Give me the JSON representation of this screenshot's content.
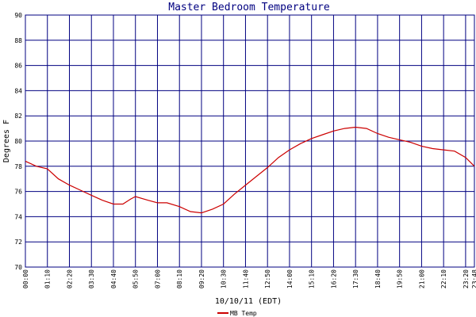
{
  "chart_data": {
    "type": "line",
    "title": "Master Bedroom Temperature",
    "xlabel": "10/10/11 (EDT)",
    "ylabel": "Degrees F",
    "ylim": [
      70,
      90
    ],
    "yticks": [
      70,
      72,
      74,
      76,
      78,
      80,
      82,
      84,
      86,
      88,
      90
    ],
    "xlim": [
      "00:00",
      "23:48"
    ],
    "xticks": [
      "00:00",
      "01:10",
      "02:20",
      "03:30",
      "04:40",
      "05:50",
      "07:00",
      "08:10",
      "09:20",
      "10:30",
      "11:40",
      "12:50",
      "14:00",
      "15:10",
      "16:20",
      "17:30",
      "18:40",
      "19:50",
      "21:00",
      "22:10",
      "23:20",
      "23:48"
    ],
    "grid": true,
    "legend_position": "bottom-left",
    "colors": {
      "grid": "#000080",
      "line": "#cc0000",
      "title": "#000080"
    },
    "series": [
      {
        "name": "MB Temp",
        "x": [
          "00:00",
          "00:35",
          "01:10",
          "01:45",
          "02:20",
          "02:55",
          "03:30",
          "04:05",
          "04:40",
          "05:10",
          "05:35",
          "05:50",
          "06:30",
          "07:00",
          "07:30",
          "08:10",
          "08:45",
          "09:20",
          "09:55",
          "10:30",
          "11:05",
          "11:40",
          "12:15",
          "12:50",
          "13:25",
          "14:00",
          "14:35",
          "15:10",
          "15:45",
          "16:20",
          "16:55",
          "17:30",
          "18:05",
          "18:40",
          "19:15",
          "19:50",
          "20:25",
          "21:00",
          "21:35",
          "22:10",
          "22:45",
          "23:20",
          "23:48"
        ],
        "values": [
          78.4,
          78.0,
          77.8,
          77.0,
          76.5,
          76.1,
          75.7,
          75.3,
          75.0,
          75.0,
          75.4,
          75.6,
          75.3,
          75.1,
          75.1,
          74.8,
          74.4,
          74.3,
          74.6,
          75.0,
          75.8,
          76.5,
          77.2,
          77.9,
          78.7,
          79.3,
          79.8,
          80.2,
          80.5,
          80.8,
          81.0,
          81.1,
          81.0,
          80.6,
          80.3,
          80.1,
          79.9,
          79.6,
          79.4,
          79.3,
          79.2,
          78.7,
          78.0
        ]
      }
    ]
  }
}
